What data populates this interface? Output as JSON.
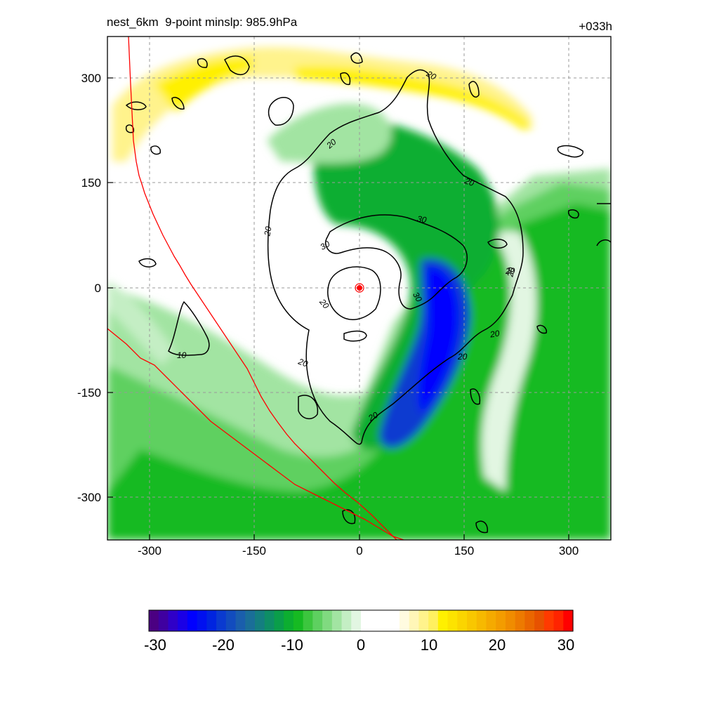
{
  "title": {
    "left": "nest_6km  9-point minslp: 985.9hPa",
    "right": "+033h"
  },
  "chart_data": {
    "type": "heatmap",
    "title": "nest_6km  9-point minslp: 985.9hPa",
    "forecast_hour": "+033h",
    "xlim": [
      -360,
      360
    ],
    "ylim": [
      -360,
      360
    ],
    "xticks": [
      -300,
      -150,
      0,
      150,
      300
    ],
    "yticks": [
      300,
      150,
      0,
      -150,
      -300
    ],
    "grid": true,
    "colorbar": {
      "range": [
        -30,
        30
      ],
      "ticks": [
        -30,
        -20,
        -10,
        0,
        10,
        20,
        30
      ],
      "colors": [
        "#4b0082",
        "#3f00a0",
        "#2f00c8",
        "#1a00e6",
        "#0000ff",
        "#0010f0",
        "#0024e0",
        "#0a3ad0",
        "#124cbe",
        "#1a5eac",
        "#1a6e98",
        "#147e80",
        "#0e8e66",
        "#0a9e4a",
        "#0cae30",
        "#16ba22",
        "#3cc63e",
        "#5ed060",
        "#80da80",
        "#a2e4a2",
        "#c4eec4",
        "#e2f6e2",
        "#ffffff",
        "#ffffff",
        "#ffffff",
        "#ffffff",
        "#fffbe0",
        "#fff6b8",
        "#fff38c",
        "#fff060",
        "#fff000",
        "#fde300",
        "#fbd500",
        "#f9c700",
        "#f7b900",
        "#f5aa00",
        "#f39c00",
        "#f08c00",
        "#ed7a00",
        "#ea6600",
        "#e75200",
        "#ff3a00",
        "#ff2400",
        "#ff0000"
      ]
    },
    "contour_labels": [
      "20",
      "20",
      "20",
      "20",
      "20",
      "20",
      "20",
      "20",
      "20",
      "30",
      "30",
      "30",
      "20",
      "20",
      "10"
    ],
    "storm_center": [
      0,
      0
    ],
    "features": {
      "minimum_anomaly_region": "blue band east of center, about -20 to -25",
      "positive_anomaly_region": "yellow arc north of center, about +10"
    }
  }
}
